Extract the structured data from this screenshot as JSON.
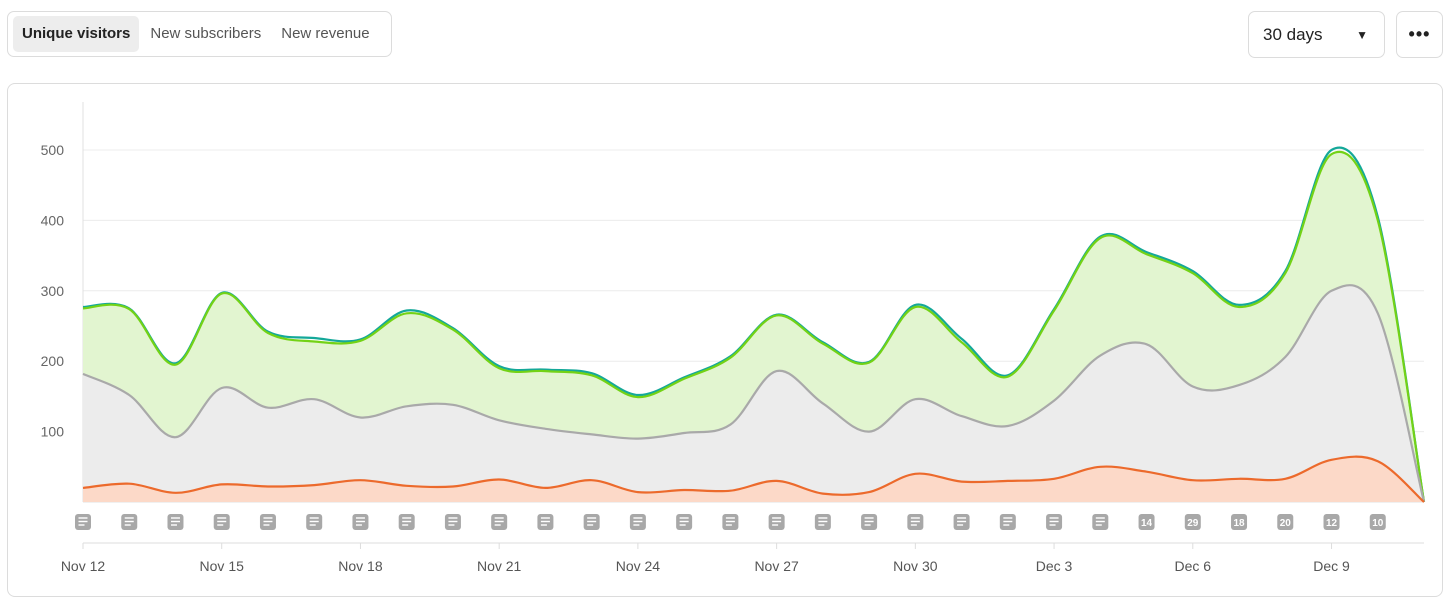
{
  "tabs": [
    {
      "label": "Unique visitors",
      "active": true
    },
    {
      "label": "New subscribers",
      "active": false
    },
    {
      "label": "New revenue",
      "active": false
    }
  ],
  "range": {
    "value": "30 days",
    "caret_icon": "caret-down-icon"
  },
  "more": {
    "icon": "ellipsis-icon"
  },
  "chart_data": {
    "type": "area",
    "title": "Unique visitors",
    "xlabel": "",
    "ylabel": "",
    "ylim": [
      0,
      560
    ],
    "yticks": [
      100,
      200,
      300,
      400,
      500
    ],
    "stacked": true,
    "x": [
      "Nov 12",
      "Nov 13",
      "Nov 14",
      "Nov 15",
      "Nov 16",
      "Nov 17",
      "Nov 18",
      "Nov 19",
      "Nov 20",
      "Nov 21",
      "Nov 22",
      "Nov 23",
      "Nov 24",
      "Nov 25",
      "Nov 26",
      "Nov 27",
      "Nov 28",
      "Nov 29",
      "Nov 30",
      "Dec 1",
      "Dec 2",
      "Dec 3",
      "Dec 4",
      "Dec 5",
      "Dec 6",
      "Dec 7",
      "Dec 8",
      "Dec 9",
      "Dec 10",
      "Dec 11"
    ],
    "xtick_labels": [
      "Nov 12",
      "Nov 15",
      "Nov 18",
      "Nov 21",
      "Nov 24",
      "Nov 27",
      "Nov 30",
      "Dec 3",
      "Dec 6",
      "Dec 9"
    ],
    "xtick_indices": [
      0,
      3,
      6,
      9,
      12,
      15,
      18,
      21,
      24,
      27
    ],
    "series": [
      {
        "name": "Orange",
        "color": "#ec6a2c",
        "fill": "#fcd9c8",
        "values": [
          20,
          26,
          13,
          25,
          22,
          24,
          31,
          23,
          22,
          32,
          20,
          31,
          14,
          17,
          16,
          30,
          12,
          14,
          40,
          29,
          30,
          33,
          50,
          43,
          31,
          33,
          33,
          60,
          58,
          0
        ]
      },
      {
        "name": "Gray",
        "color": "#a9a9a9",
        "fill": "#ececec",
        "values": [
          182,
          152,
          92,
          162,
          134,
          146,
          120,
          136,
          138,
          116,
          104,
          96,
          90,
          98,
          110,
          186,
          140,
          100,
          146,
          122,
          108,
          144,
          208,
          224,
          164,
          166,
          206,
          300,
          268,
          0
        ]
      },
      {
        "name": "Light green",
        "color": "#73d216",
        "fill": "#e2f5d0",
        "values": [
          275,
          274,
          195,
          296,
          240,
          228,
          229,
          268,
          245,
          190,
          186,
          180,
          149,
          175,
          205,
          265,
          225,
          198,
          277,
          227,
          178,
          272,
          375,
          352,
          325,
          277,
          325,
          494,
          400,
          0
        ]
      },
      {
        "name": "Teal",
        "color": "#14a899",
        "fill": "none",
        "values": [
          277,
          275,
          197,
          297,
          242,
          233,
          231,
          272,
          247,
          193,
          188,
          183,
          152,
          177,
          207,
          266,
          227,
          199,
          280,
          232,
          180,
          274,
          377,
          355,
          328,
          280,
          328,
          500,
          405,
          0
        ]
      }
    ],
    "annotations": [
      {
        "label": "",
        "icon": "note-icon"
      },
      {
        "label": "",
        "icon": "note-icon"
      },
      {
        "label": "",
        "icon": "note-icon"
      },
      {
        "label": "",
        "icon": "note-icon"
      },
      {
        "label": "",
        "icon": "note-icon"
      },
      {
        "label": "",
        "icon": "note-icon"
      },
      {
        "label": "",
        "icon": "note-icon"
      },
      {
        "label": "",
        "icon": "note-icon"
      },
      {
        "label": "",
        "icon": "note-icon"
      },
      {
        "label": "",
        "icon": "note-icon"
      },
      {
        "label": "",
        "icon": "note-icon"
      },
      {
        "label": "",
        "icon": "note-icon"
      },
      {
        "label": "",
        "icon": "note-icon"
      },
      {
        "label": "",
        "icon": "note-icon"
      },
      {
        "label": "",
        "icon": "note-icon"
      },
      {
        "label": "",
        "icon": "note-icon"
      },
      {
        "label": "",
        "icon": "note-icon"
      },
      {
        "label": "",
        "icon": "note-icon"
      },
      {
        "label": "",
        "icon": "note-icon"
      },
      {
        "label": "",
        "icon": "note-icon"
      },
      {
        "label": "",
        "icon": "note-icon"
      },
      {
        "label": "",
        "icon": "note-icon"
      },
      {
        "label": "",
        "icon": "note-icon"
      },
      {
        "label": "14",
        "icon": ""
      },
      {
        "label": "29",
        "icon": ""
      },
      {
        "label": "18",
        "icon": ""
      },
      {
        "label": "20",
        "icon": ""
      },
      {
        "label": "12",
        "icon": ""
      },
      {
        "label": "10",
        "icon": ""
      }
    ]
  }
}
